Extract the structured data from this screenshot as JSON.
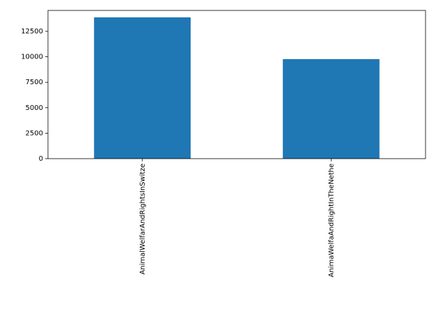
{
  "chart_data": {
    "type": "bar",
    "categories": [
      "AnimalWelfarAndRightsInSwitze",
      "AnimaWelfaAndRightInTheNethe"
    ],
    "values": [
      13870,
      9770
    ],
    "color": "#1f77b4",
    "ylim": [
      0,
      14550
    ],
    "yticks": [
      0,
      2500,
      5000,
      7500,
      10000,
      12500
    ],
    "grid": false
  }
}
